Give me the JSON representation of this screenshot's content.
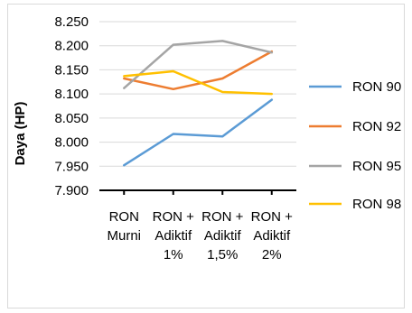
{
  "chart_data": {
    "type": "line",
    "ylabel": "Daya (HP)",
    "xlabel": "",
    "ylim": [
      7.9,
      8.25
    ],
    "y_ticks": [
      "7.900",
      "7.950",
      "8.000",
      "8.050",
      "8.100",
      "8.150",
      "8.200",
      "8.250"
    ],
    "categories": [
      [
        "RON",
        "Murni"
      ],
      [
        "RON +",
        "Adiktif",
        "1%"
      ],
      [
        "RON +",
        "Adiktif",
        "1,5%"
      ],
      [
        "RON +",
        "Adiktif",
        "2%"
      ]
    ],
    "grid": "horizontal",
    "legend_position": "right",
    "series": [
      {
        "name": "RON 90",
        "color": "#5b9bd5",
        "values": [
          7.952,
          8.017,
          8.012,
          8.088
        ]
      },
      {
        "name": "RON 92",
        "color": "#ed7d31",
        "values": [
          8.132,
          8.11,
          8.132,
          8.188
        ]
      },
      {
        "name": "RON 95",
        "color": "#a5a5a5",
        "values": [
          8.112,
          8.202,
          8.21,
          8.186
        ]
      },
      {
        "name": "RON 98",
        "color": "#ffc000",
        "values": [
          8.137,
          8.147,
          8.104,
          8.1
        ]
      }
    ]
  }
}
